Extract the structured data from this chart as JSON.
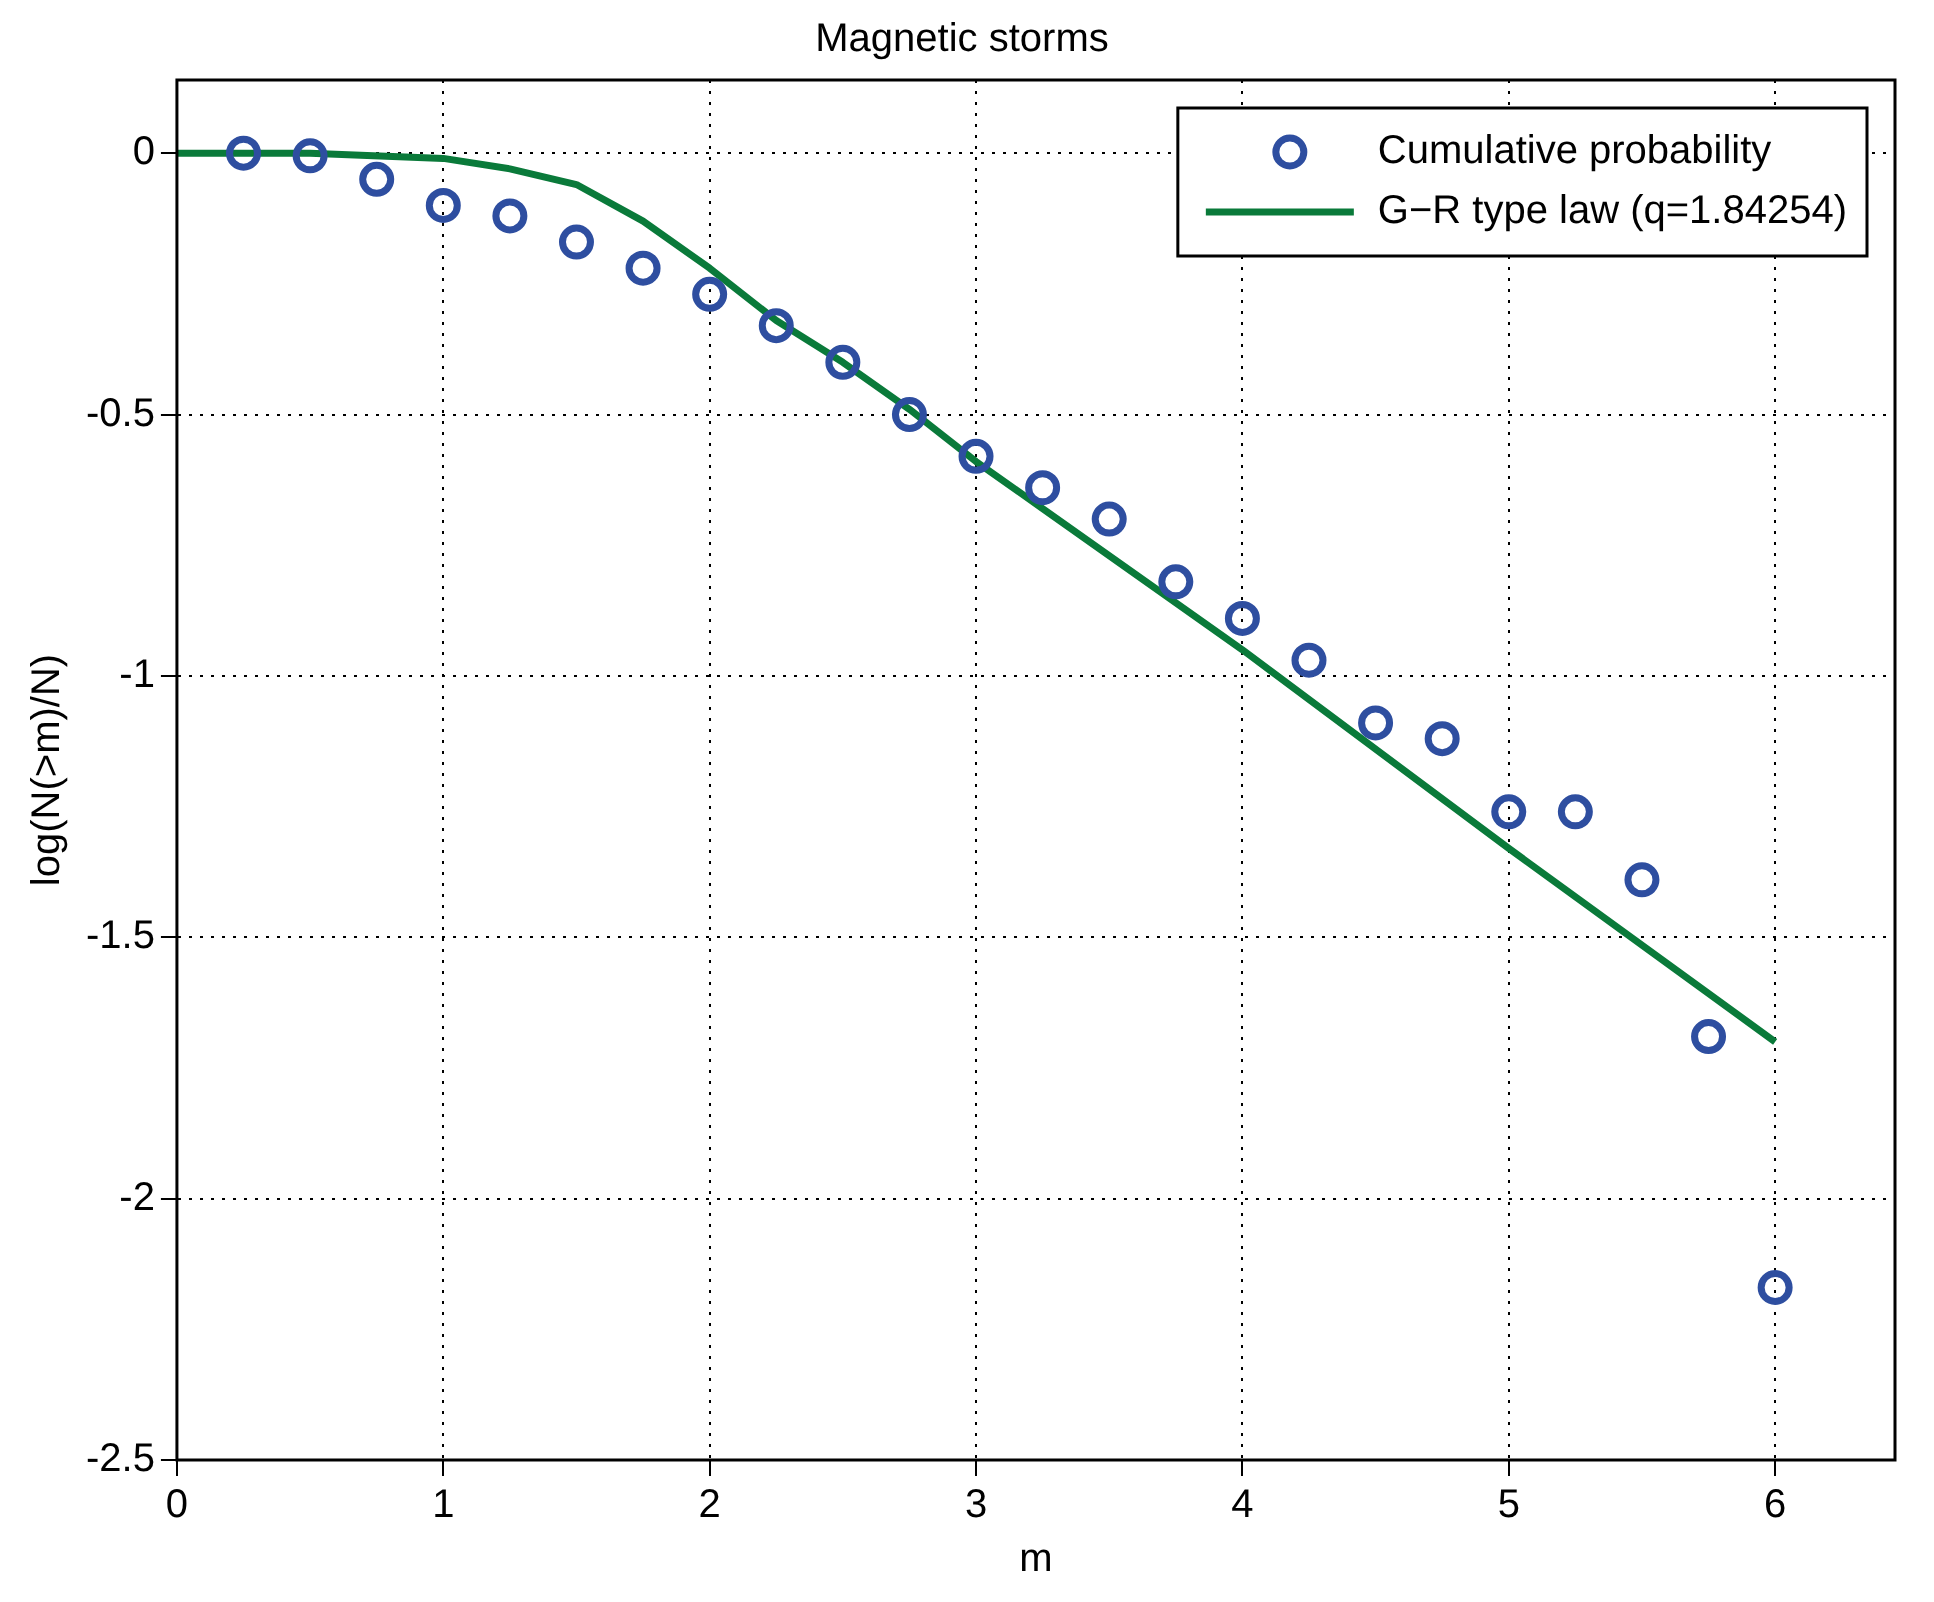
{
  "chart_data": {
    "type": "scatter",
    "title": "Magnetic storms",
    "xlabel": "m",
    "ylabel": "log(N(>m)/N)",
    "xlim": [
      0,
      6.45
    ],
    "ylim": [
      -2.5,
      0.14
    ],
    "xticks": [
      0,
      1,
      2,
      3,
      4,
      5,
      6
    ],
    "yticks": [
      -2.5,
      -2,
      -1.5,
      -1,
      -0.5,
      0
    ],
    "grid": true,
    "legend": "top right",
    "series": [
      {
        "name": "Cumulative probability",
        "marker": "circle",
        "color": "#2e4ea0",
        "x": [
          0.25,
          0.5,
          0.75,
          1,
          1.25,
          1.5,
          1.75,
          2,
          2.25,
          2.5,
          2.75,
          3,
          3.25,
          3.5,
          3.75,
          4,
          4.25,
          4.5,
          4.75,
          5,
          5.25,
          5.5,
          5.75,
          6
        ],
        "values": [
          0,
          -0.005,
          -0.05,
          -0.1,
          -0.12,
          -0.17,
          -0.22,
          -0.27,
          -0.33,
          -0.4,
          -0.5,
          -0.58,
          -0.64,
          -0.7,
          -0.82,
          -0.89,
          -0.97,
          -1.09,
          -1.12,
          -1.26,
          -1.26,
          -1.39,
          -1.69,
          -2.17
        ]
      },
      {
        "name": "G−R type law (q=1.84254)",
        "type": "line",
        "marker": "none",
        "line_style": "solid",
        "color": "#0a7a3a",
        "x": [
          0,
          0.5,
          1,
          1.25,
          1.5,
          1.75,
          2,
          2.25,
          2.5,
          2.75,
          3,
          4,
          5,
          6
        ],
        "values": [
          0,
          0,
          -0.01,
          -0.03,
          -0.06,
          -0.13,
          -0.22,
          -0.32,
          -0.4,
          -0.49,
          -0.59,
          -0.95,
          -1.33,
          -1.7
        ]
      }
    ]
  }
}
